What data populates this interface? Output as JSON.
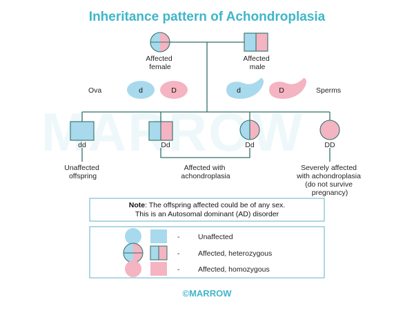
{
  "title": "Inheritance pattern of Achondroplasia",
  "watermark": "MARROW",
  "colors": {
    "blue": "#a9d9ec",
    "pink": "#f4b4c2",
    "line": "#2f6f6a",
    "title": "#3fb6c9"
  },
  "parents": {
    "female_label": [
      "Affected",
      "female"
    ],
    "male_label": [
      "Affected",
      "male"
    ]
  },
  "gametes": {
    "ova_label": "Ova",
    "sperms_label": "Sperms",
    "ova": [
      "d",
      "D"
    ],
    "sperms": [
      "d",
      "D"
    ]
  },
  "offspring": {
    "genotypes": [
      "dd",
      "Dd",
      "Dd",
      "DD"
    ],
    "unaffected_label": [
      "Unaffected",
      "offspring"
    ],
    "affected_label": [
      "Affected with",
      "achondroplasia"
    ],
    "severe_label": [
      "Severely affected",
      "with achondroplasia",
      "(do not survive",
      "pregnancy)"
    ]
  },
  "note": {
    "bold": "Note",
    "line1_rest": ": The offspring affected could be of any sex.",
    "line2": "This is an Autosomal dominant (AD) disorder"
  },
  "legend": [
    {
      "dash": "-",
      "text": "Unaffected"
    },
    {
      "dash": "-",
      "text": "Affected, heterozygous"
    },
    {
      "dash": "-",
      "text": "Affected, homozygous"
    }
  ],
  "footer": "©MARROW"
}
